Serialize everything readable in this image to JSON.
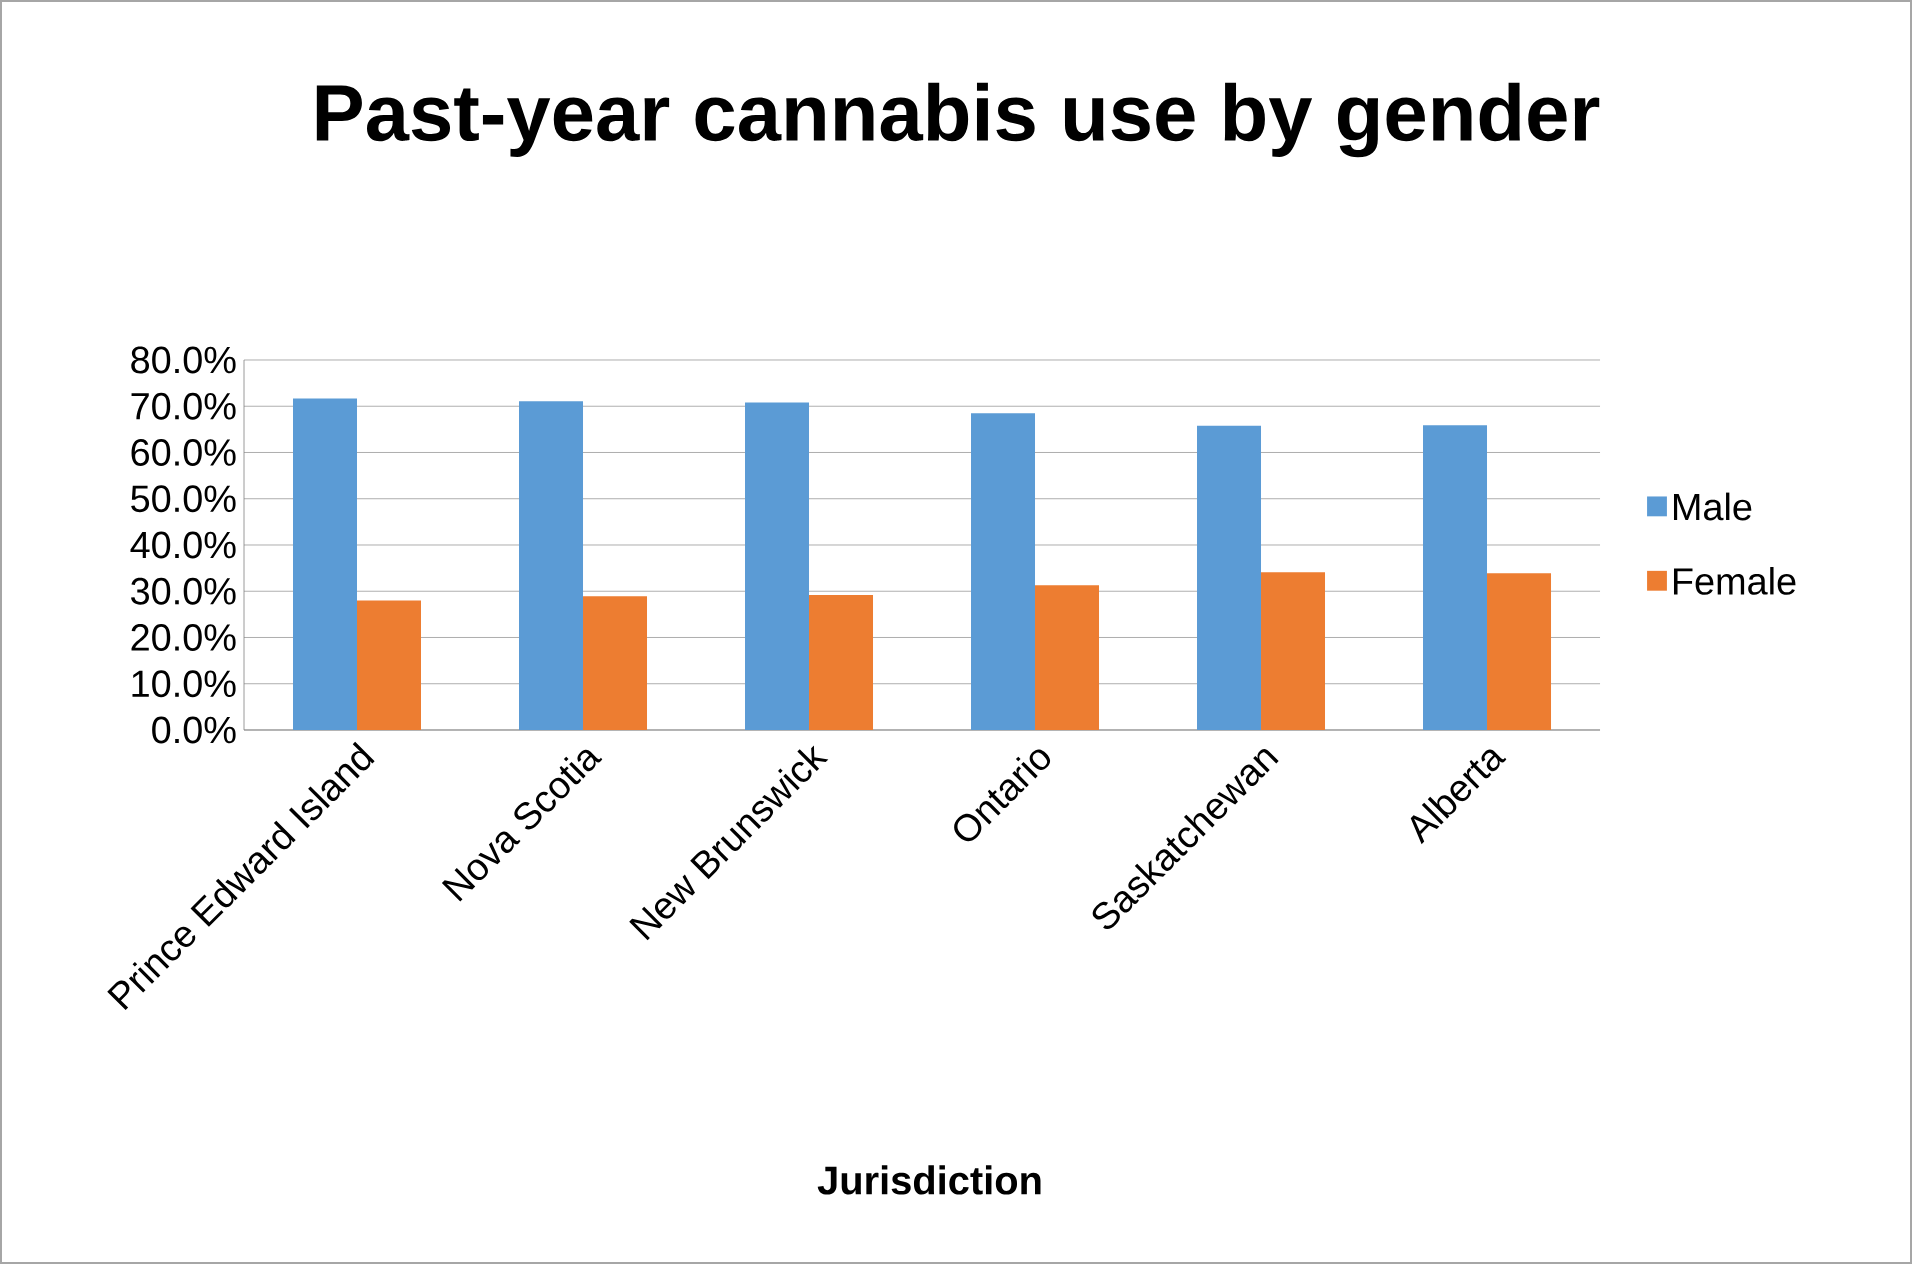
{
  "chart_data": {
    "type": "bar",
    "title": "Past-year cannabis use by gender",
    "xlabel": "Jurisdiction",
    "categories": [
      "Prince Edward Island",
      "Nova Scotia",
      "New Brunswick",
      "Ontario",
      "Saskatchewan",
      "Alberta"
    ],
    "series": [
      {
        "name": "Male",
        "color": "#5b9bd5",
        "values": [
          71.7,
          71.1,
          70.8,
          68.5,
          65.8,
          65.9
        ]
      },
      {
        "name": "Female",
        "color": "#ed7d31",
        "values": [
          28.0,
          28.9,
          29.2,
          31.3,
          34.1,
          33.9
        ]
      }
    ],
    "ylim": [
      0,
      80
    ],
    "yticks": [
      {
        "value": 0,
        "label": "0.0%"
      },
      {
        "value": 10,
        "label": "10.0%"
      },
      {
        "value": 20,
        "label": "20.0%"
      },
      {
        "value": 30,
        "label": "30.0%"
      },
      {
        "value": 40,
        "label": "40.0%"
      },
      {
        "value": 50,
        "label": "50.0%"
      },
      {
        "value": 60,
        "label": "60.0%"
      },
      {
        "value": 70,
        "label": "70.0%"
      },
      {
        "value": 80,
        "label": "80.0%"
      }
    ],
    "grid": "y",
    "legend": "right"
  }
}
